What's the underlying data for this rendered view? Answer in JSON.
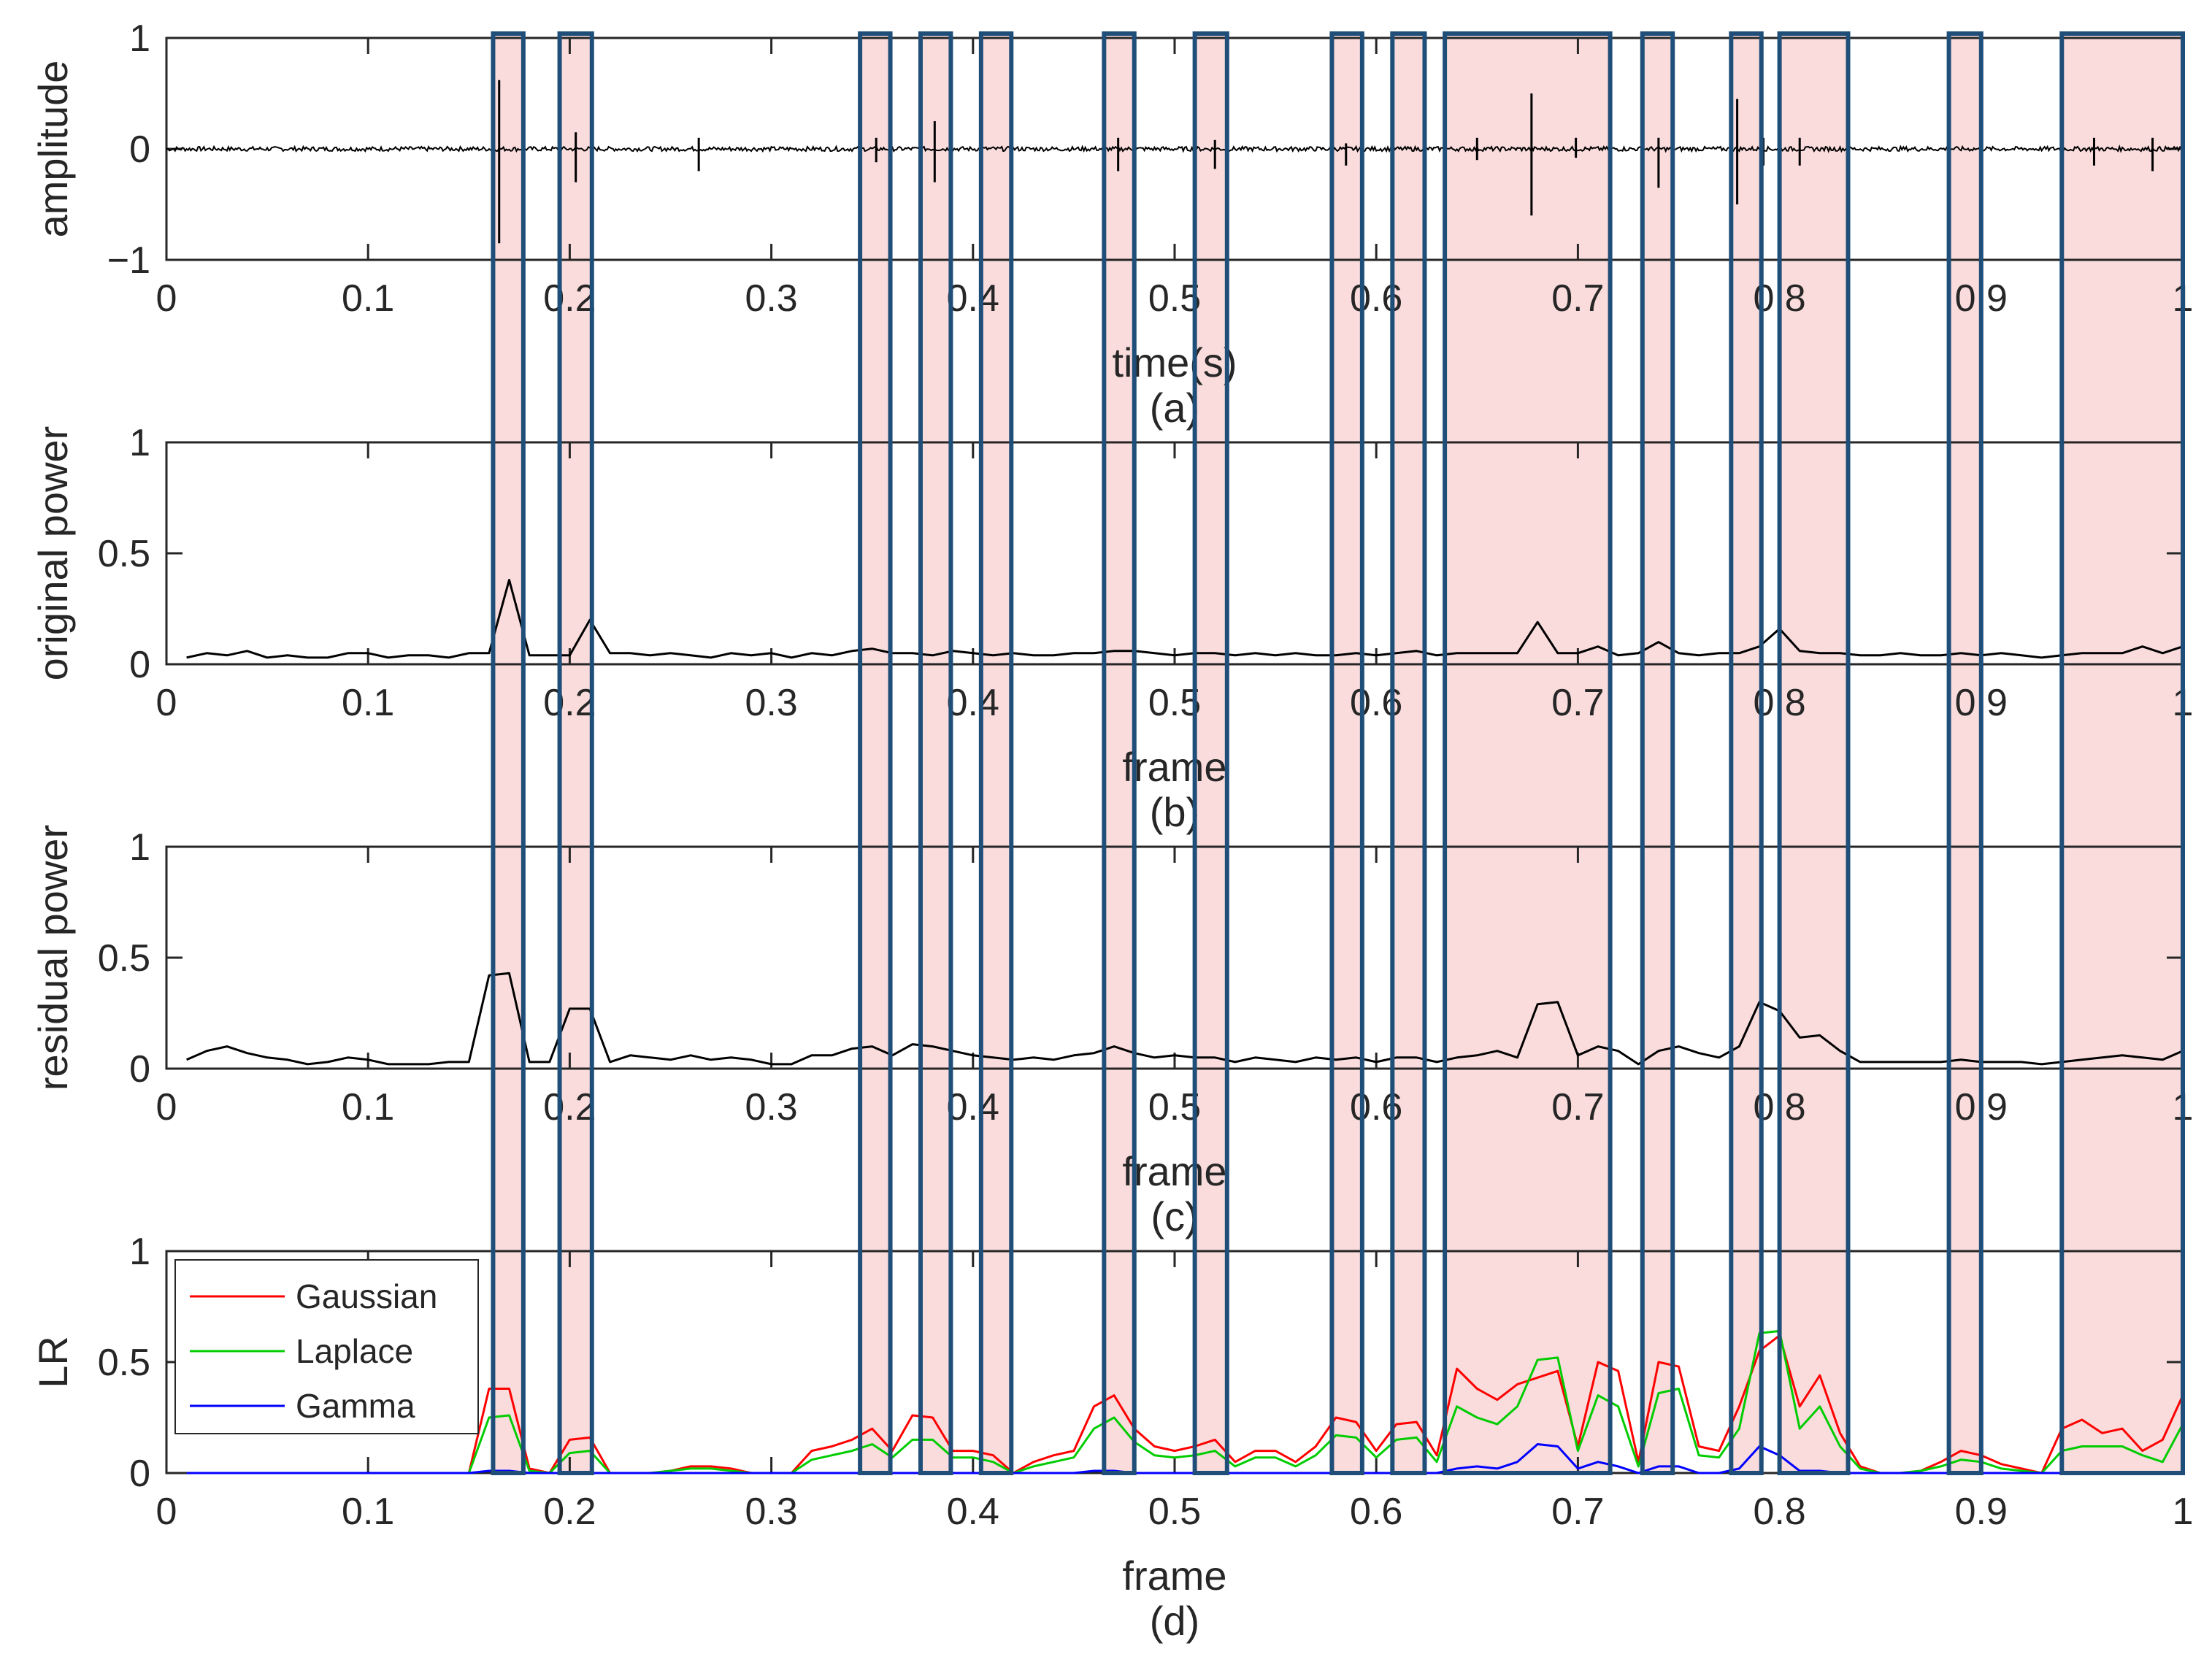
{
  "chart_data": [
    {
      "type": "line",
      "panel_label": "(a)",
      "xlabel": "time(s)",
      "ylabel": "amplitude",
      "xlim": [
        0,
        1
      ],
      "ylim": [
        -1,
        1
      ],
      "x_ticks": [
        "0",
        "0.1",
        "0.2",
        "0.3",
        "0.4",
        "0.5",
        "0.6",
        "0.7",
        "0.8",
        "0.9",
        "1"
      ],
      "y_ticks": [
        "−1",
        "0",
        "1"
      ],
      "y_tick_values": [
        -1,
        0,
        1
      ],
      "series": [
        {
          "name": "signal",
          "color": "#000000",
          "noise_level": 0.02,
          "spikes": [
            {
              "x": 0.165,
              "up": 0.62,
              "down": -0.85
            },
            {
              "x": 0.203,
              "up": 0.15,
              "down": -0.3
            },
            {
              "x": 0.264,
              "up": 0.1,
              "down": -0.2
            },
            {
              "x": 0.352,
              "up": 0.1,
              "down": -0.12
            },
            {
              "x": 0.381,
              "up": 0.25,
              "down": -0.3
            },
            {
              "x": 0.472,
              "up": 0.1,
              "down": -0.2
            },
            {
              "x": 0.52,
              "up": 0.08,
              "down": -0.18
            },
            {
              "x": 0.585,
              "up": 0.05,
              "down": -0.15
            },
            {
              "x": 0.65,
              "up": 0.1,
              "down": -0.1
            },
            {
              "x": 0.677,
              "up": 0.5,
              "down": -0.6
            },
            {
              "x": 0.699,
              "up": 0.1,
              "down": -0.08
            },
            {
              "x": 0.74,
              "up": 0.1,
              "down": -0.35
            },
            {
              "x": 0.779,
              "up": 0.45,
              "down": -0.5
            },
            {
              "x": 0.792,
              "up": 0.1,
              "down": -0.15
            },
            {
              "x": 0.81,
              "up": 0.1,
              "down": -0.15
            },
            {
              "x": 0.956,
              "up": 0.1,
              "down": -0.15
            },
            {
              "x": 0.985,
              "up": 0.1,
              "down": -0.2
            }
          ]
        }
      ]
    },
    {
      "type": "line",
      "panel_label": "(b)",
      "xlabel": "frame",
      "ylabel": "original power",
      "xlim": [
        0,
        1
      ],
      "ylim": [
        0,
        1
      ],
      "x_ticks": [
        "0",
        "0.1",
        "0.2",
        "0.3",
        "0.4",
        "0.5",
        "0.6",
        "0.7",
        "0.8",
        "0.9",
        "1"
      ],
      "y_ticks": [
        "0",
        "0.5",
        "1"
      ],
      "y_tick_values": [
        0,
        0.5,
        1
      ],
      "x": [
        0.01,
        0.02,
        0.03,
        0.04,
        0.05,
        0.06,
        0.07,
        0.08,
        0.09,
        0.1,
        0.11,
        0.12,
        0.13,
        0.14,
        0.15,
        0.16,
        0.17,
        0.18,
        0.19,
        0.2,
        0.21,
        0.22,
        0.23,
        0.24,
        0.25,
        0.26,
        0.27,
        0.28,
        0.29,
        0.3,
        0.31,
        0.32,
        0.33,
        0.34,
        0.35,
        0.36,
        0.37,
        0.38,
        0.39,
        0.4,
        0.41,
        0.42,
        0.43,
        0.44,
        0.45,
        0.46,
        0.47,
        0.48,
        0.49,
        0.5,
        0.51,
        0.52,
        0.53,
        0.54,
        0.55,
        0.56,
        0.57,
        0.58,
        0.59,
        0.6,
        0.61,
        0.62,
        0.63,
        0.64,
        0.65,
        0.66,
        0.67,
        0.68,
        0.69,
        0.7,
        0.71,
        0.72,
        0.73,
        0.74,
        0.75,
        0.76,
        0.77,
        0.78,
        0.79,
        0.8,
        0.81,
        0.82,
        0.83,
        0.84,
        0.85,
        0.86,
        0.87,
        0.88,
        0.89,
        0.9,
        0.91,
        0.92,
        0.93,
        0.94,
        0.95,
        0.96,
        0.97,
        0.98,
        0.99,
        1.0
      ],
      "series": [
        {
          "name": "original power",
          "color": "#000000",
          "values": [
            0.03,
            0.05,
            0.04,
            0.06,
            0.03,
            0.04,
            0.03,
            0.03,
            0.05,
            0.05,
            0.03,
            0.04,
            0.04,
            0.03,
            0.05,
            0.05,
            0.38,
            0.04,
            0.04,
            0.04,
            0.2,
            0.05,
            0.05,
            0.04,
            0.05,
            0.04,
            0.03,
            0.05,
            0.04,
            0.05,
            0.03,
            0.05,
            0.04,
            0.06,
            0.07,
            0.05,
            0.05,
            0.04,
            0.06,
            0.05,
            0.04,
            0.05,
            0.04,
            0.04,
            0.05,
            0.05,
            0.06,
            0.06,
            0.05,
            0.04,
            0.05,
            0.05,
            0.04,
            0.05,
            0.04,
            0.05,
            0.04,
            0.04,
            0.05,
            0.04,
            0.05,
            0.06,
            0.04,
            0.05,
            0.05,
            0.05,
            0.05,
            0.19,
            0.05,
            0.05,
            0.08,
            0.04,
            0.05,
            0.1,
            0.05,
            0.04,
            0.05,
            0.05,
            0.08,
            0.16,
            0.06,
            0.05,
            0.05,
            0.04,
            0.04,
            0.05,
            0.04,
            0.04,
            0.05,
            0.04,
            0.05,
            0.04,
            0.03,
            0.04,
            0.05,
            0.05,
            0.05,
            0.08,
            0.05,
            0.08
          ]
        }
      ]
    },
    {
      "type": "line",
      "panel_label": "(c)",
      "xlabel": "frame",
      "ylabel": "residual power",
      "xlim": [
        0,
        1
      ],
      "ylim": [
        0,
        1
      ],
      "x_ticks": [
        "0",
        "0.1",
        "0.2",
        "0.3",
        "0.4",
        "0.5",
        "0.6",
        "0.7",
        "0.8",
        "0.9",
        "1"
      ],
      "y_ticks": [
        "0",
        "0.5",
        "1"
      ],
      "y_tick_values": [
        0,
        0.5,
        1
      ],
      "x": [
        0.01,
        0.02,
        0.03,
        0.04,
        0.05,
        0.06,
        0.07,
        0.08,
        0.09,
        0.1,
        0.11,
        0.12,
        0.13,
        0.14,
        0.15,
        0.16,
        0.17,
        0.18,
        0.19,
        0.2,
        0.21,
        0.22,
        0.23,
        0.24,
        0.25,
        0.26,
        0.27,
        0.28,
        0.29,
        0.3,
        0.31,
        0.32,
        0.33,
        0.34,
        0.35,
        0.36,
        0.37,
        0.38,
        0.39,
        0.4,
        0.41,
        0.42,
        0.43,
        0.44,
        0.45,
        0.46,
        0.47,
        0.48,
        0.49,
        0.5,
        0.51,
        0.52,
        0.53,
        0.54,
        0.55,
        0.56,
        0.57,
        0.58,
        0.59,
        0.6,
        0.61,
        0.62,
        0.63,
        0.64,
        0.65,
        0.66,
        0.67,
        0.68,
        0.69,
        0.7,
        0.71,
        0.72,
        0.73,
        0.74,
        0.75,
        0.76,
        0.77,
        0.78,
        0.79,
        0.8,
        0.81,
        0.82,
        0.83,
        0.84,
        0.85,
        0.86,
        0.87,
        0.88,
        0.89,
        0.9,
        0.91,
        0.92,
        0.93,
        0.94,
        0.95,
        0.96,
        0.97,
        0.98,
        0.99,
        1.0
      ],
      "series": [
        {
          "name": "residual power",
          "color": "#000000",
          "values": [
            0.04,
            0.08,
            0.1,
            0.07,
            0.05,
            0.04,
            0.02,
            0.03,
            0.05,
            0.04,
            0.02,
            0.02,
            0.02,
            0.03,
            0.03,
            0.42,
            0.43,
            0.03,
            0.03,
            0.27,
            0.27,
            0.03,
            0.06,
            0.05,
            0.04,
            0.06,
            0.04,
            0.05,
            0.04,
            0.02,
            0.02,
            0.06,
            0.06,
            0.09,
            0.1,
            0.06,
            0.11,
            0.1,
            0.08,
            0.06,
            0.05,
            0.04,
            0.05,
            0.04,
            0.06,
            0.07,
            0.1,
            0.07,
            0.05,
            0.06,
            0.05,
            0.05,
            0.03,
            0.05,
            0.04,
            0.03,
            0.05,
            0.04,
            0.05,
            0.03,
            0.05,
            0.05,
            0.03,
            0.05,
            0.06,
            0.08,
            0.05,
            0.29,
            0.3,
            0.06,
            0.1,
            0.08,
            0.02,
            0.08,
            0.1,
            0.07,
            0.05,
            0.1,
            0.3,
            0.26,
            0.14,
            0.15,
            0.08,
            0.03,
            0.03,
            0.03,
            0.03,
            0.03,
            0.04,
            0.03,
            0.03,
            0.03,
            0.02,
            0.03,
            0.04,
            0.05,
            0.06,
            0.05,
            0.04,
            0.08
          ]
        }
      ]
    },
    {
      "type": "line",
      "panel_label": "(d)",
      "xlabel": "frame",
      "ylabel": "LR",
      "xlim": [
        0,
        1
      ],
      "ylim": [
        0,
        1
      ],
      "x_ticks": [
        "0",
        "0.1",
        "0.2",
        "0.3",
        "0.4",
        "0.5",
        "0.6",
        "0.7",
        "0.8",
        "0.9",
        "1"
      ],
      "y_ticks": [
        "0",
        "0.5",
        "1"
      ],
      "y_tick_values": [
        0,
        0.5,
        1
      ],
      "legend": "top-left",
      "x": [
        0.01,
        0.02,
        0.03,
        0.04,
        0.05,
        0.06,
        0.07,
        0.08,
        0.09,
        0.1,
        0.11,
        0.12,
        0.13,
        0.14,
        0.15,
        0.16,
        0.17,
        0.18,
        0.19,
        0.2,
        0.21,
        0.22,
        0.23,
        0.24,
        0.25,
        0.26,
        0.27,
        0.28,
        0.29,
        0.3,
        0.31,
        0.32,
        0.33,
        0.34,
        0.35,
        0.36,
        0.37,
        0.38,
        0.39,
        0.4,
        0.41,
        0.42,
        0.43,
        0.44,
        0.45,
        0.46,
        0.47,
        0.48,
        0.49,
        0.5,
        0.51,
        0.52,
        0.53,
        0.54,
        0.55,
        0.56,
        0.57,
        0.58,
        0.59,
        0.6,
        0.61,
        0.62,
        0.63,
        0.64,
        0.65,
        0.66,
        0.67,
        0.68,
        0.69,
        0.7,
        0.71,
        0.72,
        0.73,
        0.74,
        0.75,
        0.76,
        0.77,
        0.78,
        0.79,
        0.8,
        0.81,
        0.82,
        0.83,
        0.84,
        0.85,
        0.86,
        0.87,
        0.88,
        0.89,
        0.9,
        0.91,
        0.92,
        0.93,
        0.94,
        0.95,
        0.96,
        0.97,
        0.98,
        0.99,
        1.0
      ],
      "series": [
        {
          "name": "Gaussian",
          "color": "#ff0000",
          "values": [
            0,
            0,
            0,
            0,
            0,
            0,
            0,
            0,
            0,
            0,
            0,
            0,
            0,
            0,
            0,
            0.38,
            0.38,
            0.02,
            0,
            0.15,
            0.16,
            0,
            0,
            0,
            0.01,
            0.03,
            0.03,
            0.02,
            0,
            0,
            0,
            0.1,
            0.12,
            0.15,
            0.2,
            0.1,
            0.26,
            0.25,
            0.1,
            0.1,
            0.08,
            0,
            0.05,
            0.08,
            0.1,
            0.3,
            0.35,
            0.2,
            0.12,
            0.1,
            0.12,
            0.15,
            0.05,
            0.1,
            0.1,
            0.05,
            0.12,
            0.25,
            0.23,
            0.1,
            0.22,
            0.23,
            0.08,
            0.47,
            0.38,
            0.33,
            0.4,
            0.43,
            0.46,
            0.12,
            0.5,
            0.46,
            0.05,
            0.5,
            0.48,
            0.12,
            0.1,
            0.3,
            0.55,
            0.62,
            0.3,
            0.44,
            0.18,
            0.03,
            0,
            0,
            0.01,
            0.05,
            0.1,
            0.08,
            0.04,
            0.02,
            0,
            0.2,
            0.24,
            0.18,
            0.2,
            0.1,
            0.15,
            0.35
          ]
        },
        {
          "name": "Laplace",
          "color": "#00cc00",
          "values": [
            0,
            0,
            0,
            0,
            0,
            0,
            0,
            0,
            0,
            0,
            0,
            0,
            0,
            0,
            0,
            0.25,
            0.26,
            0.01,
            0,
            0.09,
            0.1,
            0,
            0,
            0,
            0.01,
            0.02,
            0.02,
            0.01,
            0,
            0,
            0,
            0.06,
            0.08,
            0.1,
            0.13,
            0.07,
            0.15,
            0.15,
            0.07,
            0.07,
            0.05,
            0,
            0.03,
            0.05,
            0.07,
            0.2,
            0.25,
            0.14,
            0.08,
            0.07,
            0.08,
            0.1,
            0.03,
            0.07,
            0.07,
            0.03,
            0.08,
            0.17,
            0.16,
            0.07,
            0.15,
            0.16,
            0.05,
            0.3,
            0.25,
            0.22,
            0.3,
            0.51,
            0.52,
            0.1,
            0.35,
            0.3,
            0.03,
            0.36,
            0.38,
            0.08,
            0.07,
            0.2,
            0.63,
            0.64,
            0.2,
            0.3,
            0.12,
            0.02,
            0,
            0,
            0.01,
            0.03,
            0.06,
            0.05,
            0.02,
            0.01,
            0,
            0.1,
            0.12,
            0.12,
            0.12,
            0.08,
            0.05,
            0.22
          ]
        },
        {
          "name": "Gamma",
          "color": "#0000ff",
          "values": [
            0,
            0,
            0,
            0,
            0,
            0,
            0,
            0,
            0,
            0,
            0,
            0,
            0,
            0,
            0,
            0.01,
            0.01,
            0,
            0,
            0,
            0,
            0,
            0,
            0,
            0,
            0,
            0,
            0,
            0,
            0,
            0,
            0,
            0,
            0,
            0,
            0,
            0,
            0,
            0,
            0,
            0,
            0,
            0,
            0,
            0,
            0.01,
            0.01,
            0,
            0,
            0,
            0,
            0,
            0,
            0,
            0,
            0,
            0,
            0,
            0,
            0,
            0,
            0,
            0,
            0.02,
            0.03,
            0.02,
            0.05,
            0.13,
            0.12,
            0.02,
            0.05,
            0.03,
            0,
            0.03,
            0.03,
            0,
            0,
            0.02,
            0.12,
            0.08,
            0.01,
            0.01,
            0,
            0,
            0,
            0,
            0,
            0,
            0,
            0,
            0,
            0,
            0,
            0,
            0,
            0,
            0,
            0,
            0,
            0
          ]
        }
      ]
    }
  ],
  "highlight_regions": [
    [
      0.162,
      0.177
    ],
    [
      0.195,
      0.211
    ],
    [
      0.344,
      0.359
    ],
    [
      0.374,
      0.389
    ],
    [
      0.404,
      0.419
    ],
    [
      0.465,
      0.48
    ],
    [
      0.51,
      0.526
    ],
    [
      0.578,
      0.593
    ],
    [
      0.608,
      0.624
    ],
    [
      0.634,
      0.716
    ],
    [
      0.732,
      0.747
    ],
    [
      0.776,
      0.791
    ],
    [
      0.8,
      0.834
    ],
    [
      0.884,
      0.9
    ],
    [
      0.94,
      1.0
    ]
  ],
  "colors": {
    "highlight_fill": "#fadcdc",
    "highlight_stroke": "#1f4e79",
    "axis": "#262626"
  }
}
